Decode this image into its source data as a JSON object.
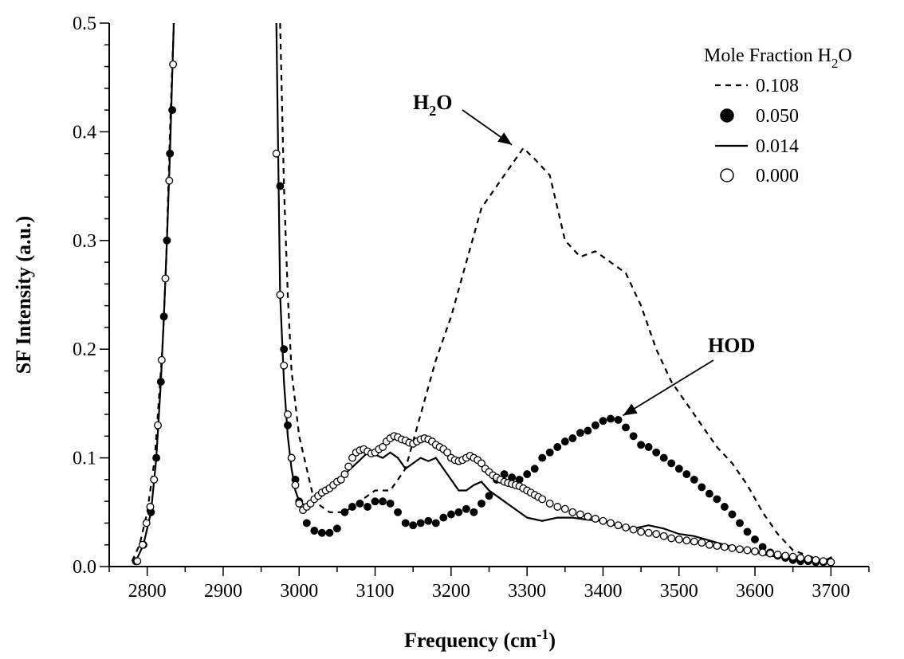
{
  "chart_data": {
    "type": "line",
    "xlabel": "Frequency (cm",
    "xlabel_sup": "-1",
    "xlabel_end": ")",
    "ylabel": "SF Intensity (a.u.)",
    "xlim": [
      2750,
      3750
    ],
    "ylim": [
      0,
      0.5
    ],
    "x_ticks": [
      2800,
      2900,
      3000,
      3100,
      3200,
      3300,
      3400,
      3500,
      3600,
      3700
    ],
    "y_ticks": [
      "0.0",
      "0.1",
      "0.2",
      "0.3",
      "0.4",
      "0.5"
    ],
    "legend": {
      "title": "Mole Fraction H",
      "title_sub": "2",
      "title_end": "O",
      "placement": "top-right"
    },
    "annotations": [
      {
        "text": "H",
        "sub": "2",
        "end": "O",
        "x": 3280,
        "y": 0.388
      },
      {
        "text": "HOD",
        "x": 3420,
        "y": 0.136
      }
    ],
    "series": [
      {
        "name": "0.108",
        "style": "dashed",
        "x": [
          2780,
          2790,
          2800,
          2810,
          2820,
          2825,
          2830,
          2835,
          2975,
          2980,
          2985,
          2990,
          3000,
          3010,
          3020,
          3040,
          3060,
          3080,
          3100,
          3120,
          3140,
          3160,
          3180,
          3200,
          3220,
          3240,
          3260,
          3280,
          3295,
          3310,
          3330,
          3350,
          3370,
          3390,
          3410,
          3430,
          3450,
          3470,
          3490,
          3510,
          3530,
          3550,
          3570,
          3590,
          3610,
          3630,
          3650,
          3670,
          3690,
          3705
        ],
        "y": [
          0.005,
          0.02,
          0.05,
          0.1,
          0.2,
          0.28,
          0.4,
          0.5,
          0.5,
          0.35,
          0.25,
          0.18,
          0.12,
          0.09,
          0.06,
          0.05,
          0.05,
          0.06,
          0.07,
          0.07,
          0.09,
          0.14,
          0.19,
          0.23,
          0.28,
          0.33,
          0.35,
          0.37,
          0.385,
          0.375,
          0.36,
          0.3,
          0.285,
          0.29,
          0.28,
          0.27,
          0.24,
          0.2,
          0.17,
          0.15,
          0.13,
          0.11,
          0.095,
          0.075,
          0.05,
          0.03,
          0.015,
          0.01,
          0.005,
          0.01
        ]
      },
      {
        "name": "0.050",
        "style": "filled-circle",
        "x": [
          2785,
          2795,
          2805,
          2812,
          2818,
          2822,
          2826,
          2830,
          2833,
          2975,
          2980,
          2985,
          2990,
          2995,
          3000,
          3010,
          3020,
          3030,
          3040,
          3050,
          3060,
          3070,
          3080,
          3090,
          3100,
          3110,
          3120,
          3130,
          3140,
          3150,
          3160,
          3170,
          3180,
          3190,
          3200,
          3210,
          3220,
          3230,
          3240,
          3250,
          3260,
          3270,
          3280,
          3290,
          3300,
          3310,
          3320,
          3330,
          3340,
          3350,
          3360,
          3370,
          3380,
          3390,
          3400,
          3410,
          3420,
          3430,
          3440,
          3450,
          3460,
          3470,
          3480,
          3490,
          3500,
          3510,
          3520,
          3530,
          3540,
          3550,
          3560,
          3570,
          3580,
          3590,
          3600,
          3610,
          3620,
          3630,
          3640,
          3650,
          3660,
          3670,
          3680,
          3690,
          3700
        ],
        "y": [
          0.005,
          0.02,
          0.05,
          0.1,
          0.17,
          0.23,
          0.3,
          0.38,
          0.42,
          0.35,
          0.2,
          0.13,
          0.1,
          0.08,
          0.06,
          0.04,
          0.033,
          0.031,
          0.031,
          0.035,
          0.05,
          0.055,
          0.058,
          0.055,
          0.06,
          0.06,
          0.058,
          0.05,
          0.04,
          0.038,
          0.04,
          0.042,
          0.04,
          0.045,
          0.048,
          0.05,
          0.053,
          0.05,
          0.058,
          0.065,
          0.08,
          0.085,
          0.082,
          0.08,
          0.085,
          0.09,
          0.1,
          0.105,
          0.11,
          0.115,
          0.118,
          0.123,
          0.125,
          0.13,
          0.134,
          0.136,
          0.135,
          0.128,
          0.12,
          0.112,
          0.11,
          0.105,
          0.1,
          0.095,
          0.09,
          0.085,
          0.08,
          0.073,
          0.067,
          0.062,
          0.055,
          0.048,
          0.04,
          0.032,
          0.025,
          0.018,
          0.013,
          0.01,
          0.008,
          0.006,
          0.005,
          0.005,
          0.004,
          0.004,
          0.004
        ]
      },
      {
        "name": "0.014",
        "style": "solid",
        "x": [
          2785,
          2795,
          2805,
          2812,
          2818,
          2822,
          2826,
          2830,
          2835,
          2970,
          2975,
          2980,
          2985,
          2990,
          2995,
          3000,
          3010,
          3020,
          3040,
          3060,
          3080,
          3090,
          3100,
          3110,
          3120,
          3130,
          3140,
          3150,
          3160,
          3170,
          3180,
          3190,
          3200,
          3210,
          3220,
          3230,
          3240,
          3250,
          3260,
          3270,
          3280,
          3300,
          3320,
          3340,
          3360,
          3380,
          3400,
          3420,
          3440,
          3460,
          3480,
          3500,
          3520,
          3540,
          3560,
          3580,
          3600,
          3620,
          3640,
          3660,
          3680,
          3700
        ],
        "y": [
          0.005,
          0.02,
          0.05,
          0.1,
          0.17,
          0.23,
          0.3,
          0.38,
          0.5,
          0.5,
          0.25,
          0.17,
          0.12,
          0.09,
          0.07,
          0.06,
          0.055,
          0.06,
          0.07,
          0.085,
          0.098,
          0.105,
          0.103,
          0.1,
          0.105,
          0.1,
          0.09,
          0.095,
          0.1,
          0.097,
          0.1,
          0.09,
          0.08,
          0.07,
          0.07,
          0.075,
          0.078,
          0.07,
          0.065,
          0.06,
          0.055,
          0.045,
          0.042,
          0.045,
          0.045,
          0.043,
          0.042,
          0.037,
          0.035,
          0.038,
          0.035,
          0.03,
          0.028,
          0.024,
          0.02,
          0.016,
          0.013,
          0.01,
          0.008,
          0.006,
          0.005,
          0.004
        ]
      },
      {
        "name": "0.000",
        "style": "open-circle",
        "x": [
          2787,
          2794,
          2799,
          2804,
          2809,
          2814,
          2819,
          2824,
          2829,
          2834,
          2970,
          2975,
          2980,
          2985,
          2990,
          2995,
          3000,
          3005,
          3010,
          3015,
          3020,
          3025,
          3030,
          3035,
          3040,
          3045,
          3050,
          3055,
          3060,
          3065,
          3070,
          3075,
          3080,
          3085,
          3090,
          3095,
          3100,
          3105,
          3110,
          3115,
          3120,
          3125,
          3130,
          3135,
          3140,
          3145,
          3150,
          3155,
          3160,
          3165,
          3170,
          3175,
          3180,
          3185,
          3190,
          3195,
          3200,
          3205,
          3210,
          3215,
          3220,
          3225,
          3230,
          3235,
          3240,
          3245,
          3250,
          3255,
          3260,
          3265,
          3270,
          3275,
          3280,
          3285,
          3290,
          3295,
          3300,
          3305,
          3310,
          3315,
          3320,
          3330,
          3340,
          3350,
          3360,
          3370,
          3380,
          3390,
          3400,
          3410,
          3420,
          3430,
          3440,
          3450,
          3460,
          3470,
          3480,
          3490,
          3500,
          3510,
          3520,
          3530,
          3540,
          3550,
          3560,
          3570,
          3580,
          3590,
          3600,
          3610,
          3620,
          3630,
          3640,
          3650,
          3660,
          3670,
          3680,
          3690,
          3700
        ],
        "y": [
          0.005,
          0.02,
          0.04,
          0.055,
          0.08,
          0.13,
          0.19,
          0.265,
          0.355,
          0.462,
          0.38,
          0.25,
          0.185,
          0.14,
          0.1,
          0.075,
          0.058,
          0.052,
          0.055,
          0.058,
          0.062,
          0.065,
          0.068,
          0.07,
          0.072,
          0.075,
          0.078,
          0.08,
          0.085,
          0.092,
          0.1,
          0.105,
          0.107,
          0.108,
          0.106,
          0.104,
          0.105,
          0.108,
          0.11,
          0.115,
          0.118,
          0.12,
          0.119,
          0.117,
          0.116,
          0.114,
          0.113,
          0.115,
          0.117,
          0.118,
          0.117,
          0.115,
          0.112,
          0.11,
          0.108,
          0.105,
          0.1,
          0.098,
          0.097,
          0.098,
          0.1,
          0.102,
          0.1,
          0.098,
          0.095,
          0.09,
          0.087,
          0.084,
          0.082,
          0.08,
          0.078,
          0.077,
          0.076,
          0.075,
          0.074,
          0.072,
          0.07,
          0.068,
          0.066,
          0.064,
          0.062,
          0.058,
          0.055,
          0.053,
          0.05,
          0.048,
          0.046,
          0.044,
          0.042,
          0.04,
          0.038,
          0.036,
          0.034,
          0.032,
          0.031,
          0.03,
          0.028,
          0.026,
          0.025,
          0.024,
          0.023,
          0.022,
          0.02,
          0.019,
          0.018,
          0.017,
          0.016,
          0.015,
          0.014,
          0.013,
          0.012,
          0.011,
          0.01,
          0.009,
          0.008,
          0.007,
          0.006,
          0.005,
          0.004
        ]
      }
    ]
  }
}
